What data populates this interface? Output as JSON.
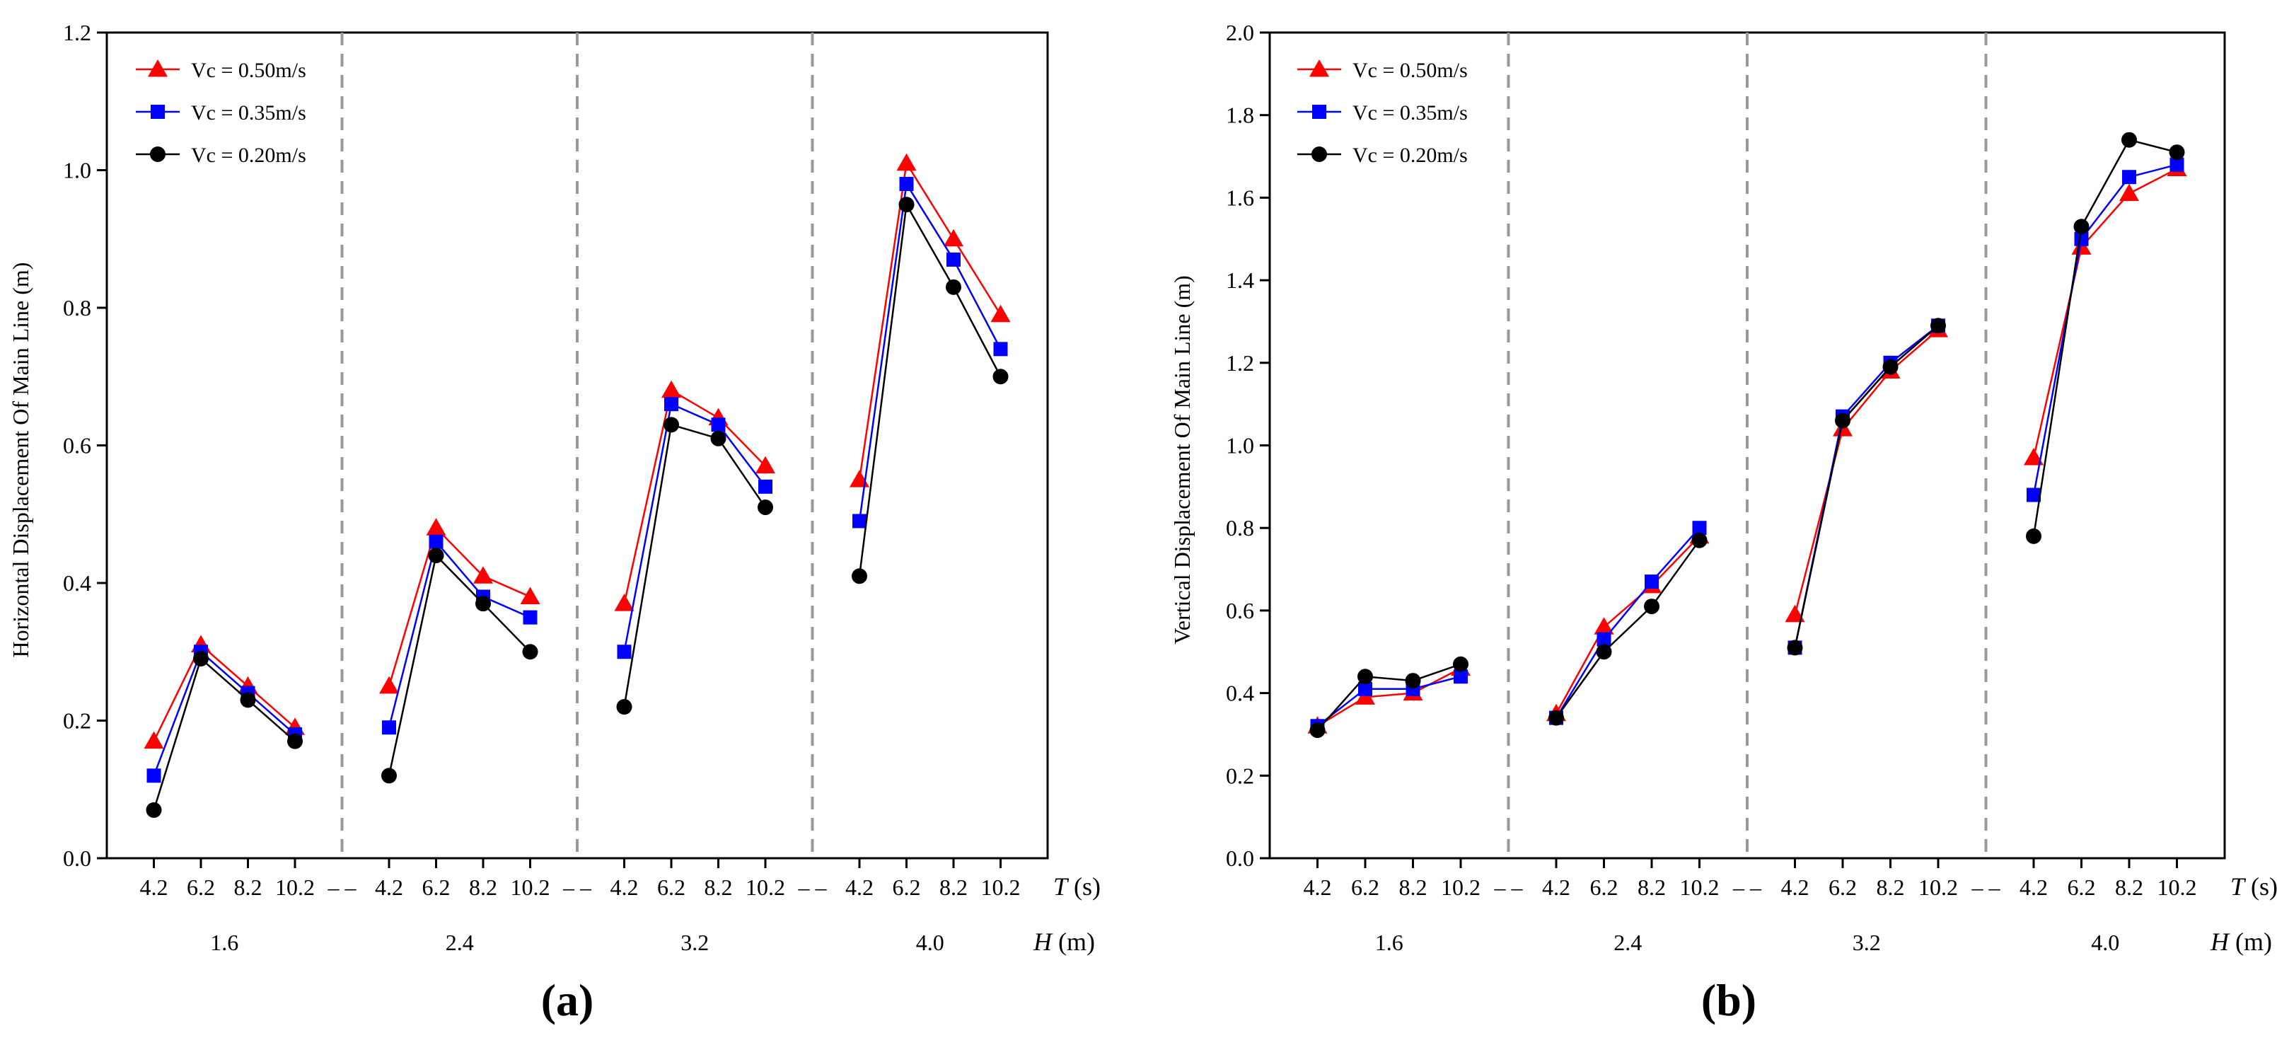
{
  "colors": {
    "series_a": "#ff0000",
    "series_b": "#0000ff",
    "series_c": "#000000",
    "divider": "#999999"
  },
  "chart_data": [
    {
      "type": "line",
      "panel_label": "(a)",
      "ylabel": "Horizontal Displacement Of Main Line (m)",
      "ylim": [
        0,
        1.2
      ],
      "yticks": [
        "0.0",
        "0.2",
        "0.4",
        "0.6",
        "0.8",
        "1.0",
        "1.2"
      ],
      "t_label": {
        "symbol": "T",
        "unit": " (s)"
      },
      "h_label": {
        "symbol": "H",
        "unit": " (m)"
      },
      "t_ticks": [
        "4.2",
        "6.2",
        "8.2",
        "10.2"
      ],
      "groups": [
        "1.6",
        "2.4",
        "3.2",
        "4.0"
      ],
      "series": [
        {
          "name": "Vc = 0.50m/s",
          "color": "#ff0000",
          "marker": "triangle",
          "values": [
            [
              0.17,
              0.31,
              0.25,
              0.19
            ],
            [
              0.25,
              0.48,
              0.41,
              0.38
            ],
            [
              0.37,
              0.68,
              0.64,
              0.57
            ],
            [
              0.55,
              1.01,
              0.9,
              0.79
            ]
          ]
        },
        {
          "name": "Vc = 0.35m/s",
          "color": "#0000ff",
          "marker": "square",
          "values": [
            [
              0.12,
              0.3,
              0.24,
              0.18
            ],
            [
              0.19,
              0.46,
              0.38,
              0.35
            ],
            [
              0.3,
              0.66,
              0.63,
              0.54
            ],
            [
              0.49,
              0.98,
              0.87,
              0.74
            ]
          ]
        },
        {
          "name": "Vc = 0.20m/s",
          "color": "#000000",
          "marker": "circle",
          "values": [
            [
              0.07,
              0.29,
              0.23,
              0.17
            ],
            [
              0.12,
              0.44,
              0.37,
              0.3
            ],
            [
              0.22,
              0.63,
              0.61,
              0.51
            ],
            [
              0.41,
              0.95,
              0.83,
              0.7
            ]
          ]
        }
      ]
    },
    {
      "type": "line",
      "panel_label": "(b)",
      "ylabel": "Vertical Displacement Of Main Line (m)",
      "ylim": [
        0,
        2.0
      ],
      "yticks": [
        "0.0",
        "0.2",
        "0.4",
        "0.6",
        "0.8",
        "1.0",
        "1.2",
        "1.4",
        "1.6",
        "1.8",
        "2.0"
      ],
      "t_label": {
        "symbol": "T",
        "unit": " (s)"
      },
      "h_label": {
        "symbol": "H",
        "unit": " (m)"
      },
      "t_ticks": [
        "4.2",
        "6.2",
        "8.2",
        "10.2"
      ],
      "groups": [
        "1.6",
        "2.4",
        "3.2",
        "4.0"
      ],
      "series": [
        {
          "name": "Vc = 0.50m/s",
          "color": "#ff0000",
          "marker": "triangle",
          "values": [
            [
              0.32,
              0.39,
              0.4,
              0.46
            ],
            [
              0.35,
              0.56,
              0.66,
              0.78
            ],
            [
              0.59,
              1.04,
              1.18,
              1.28
            ],
            [
              0.97,
              1.48,
              1.61,
              1.67
            ]
          ]
        },
        {
          "name": "Vc = 0.35m/s",
          "color": "#0000ff",
          "marker": "square",
          "values": [
            [
              0.32,
              0.41,
              0.41,
              0.44
            ],
            [
              0.34,
              0.53,
              0.67,
              0.8
            ],
            [
              0.51,
              1.07,
              1.2,
              1.29
            ],
            [
              0.88,
              1.5,
              1.65,
              1.68
            ]
          ]
        },
        {
          "name": "Vc = 0.20m/s",
          "color": "#000000",
          "marker": "circle",
          "values": [
            [
              0.31,
              0.44,
              0.43,
              0.47
            ],
            [
              0.34,
              0.5,
              0.61,
              0.77
            ],
            [
              0.51,
              1.06,
              1.19,
              1.29
            ],
            [
              0.78,
              1.53,
              1.74,
              1.71
            ]
          ]
        }
      ]
    }
  ]
}
